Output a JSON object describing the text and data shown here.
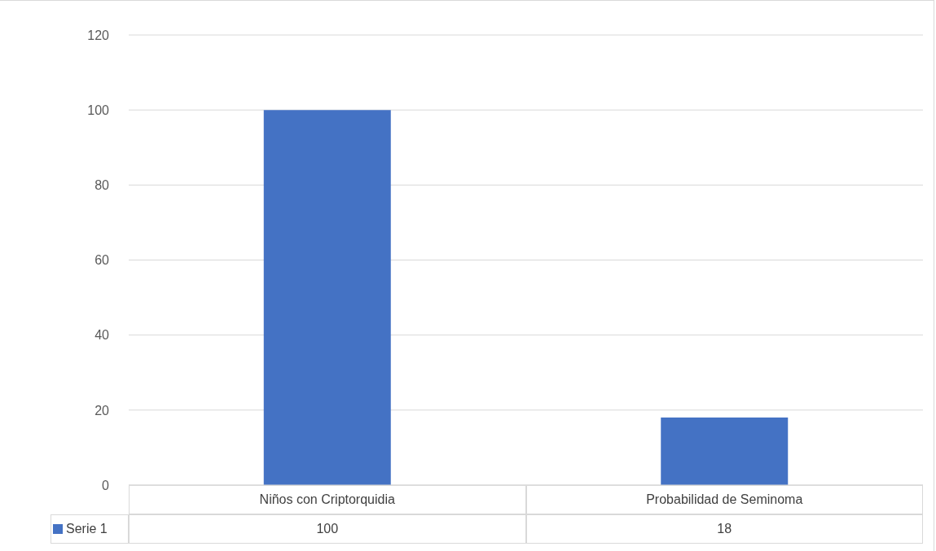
{
  "chart_data": {
    "type": "bar",
    "categories": [
      "Niños con Criptorquidia",
      "Probabilidad de Seminoma"
    ],
    "series": [
      {
        "name": "Serie 1",
        "color": "#4472c4",
        "values": [
          100,
          18
        ]
      }
    ],
    "ylim": [
      0,
      120
    ],
    "yticks": [
      0,
      20,
      40,
      60,
      80,
      100,
      120
    ],
    "grid": "y",
    "legend": "bottom left",
    "data_labels": true
  }
}
